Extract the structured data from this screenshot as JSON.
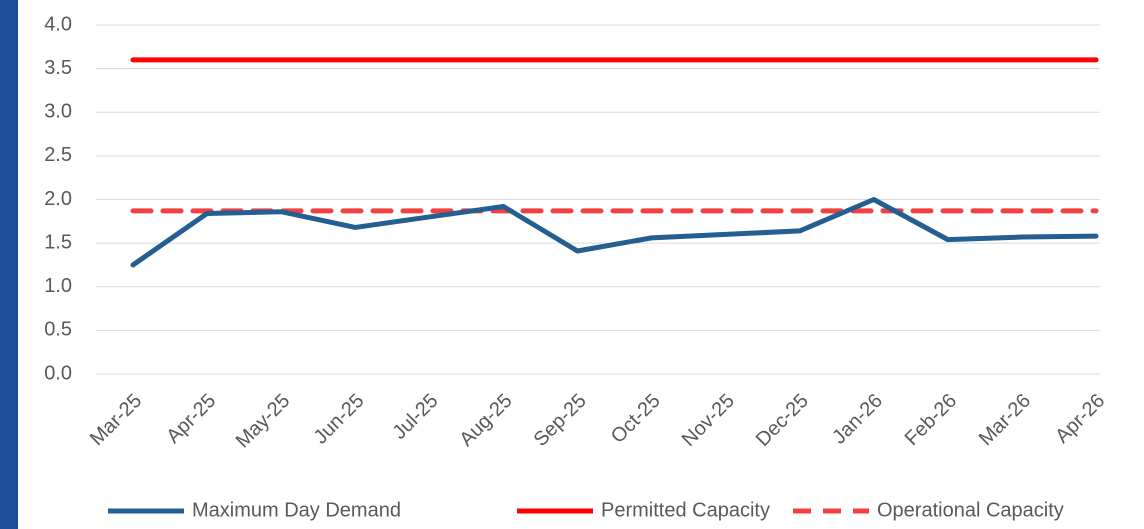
{
  "chart_data": {
    "type": "line",
    "categories": [
      "Mar-25",
      "Apr-25",
      "May-25",
      "Jun-25",
      "Jul-25",
      "Aug-25",
      "Sep-25",
      "Oct-25",
      "Nov-25",
      "Dec-25",
      "Jan-26",
      "Feb-26",
      "Mar-26",
      "Apr-26"
    ],
    "series": [
      {
        "name": "Maximum Day Demand",
        "color": "#255e91",
        "dash": false,
        "values": [
          1.25,
          1.84,
          1.86,
          1.68,
          1.8,
          1.92,
          1.41,
          1.56,
          1.6,
          1.64,
          2.0,
          1.54,
          1.57,
          1.58
        ]
      },
      {
        "name": "Permitted Capacity",
        "color": "#ff0000",
        "dash": false,
        "values": [
          3.6,
          3.6,
          3.6,
          3.6,
          3.6,
          3.6,
          3.6,
          3.6,
          3.6,
          3.6,
          3.6,
          3.6,
          3.6,
          3.6
        ]
      },
      {
        "name": "Operational Capacity",
        "color": "#f04040",
        "dash": true,
        "values": [
          1.87,
          1.87,
          1.87,
          1.87,
          1.87,
          1.87,
          1.87,
          1.87,
          1.87,
          1.87,
          1.87,
          1.87,
          1.87,
          1.87
        ]
      }
    ],
    "ylim": [
      0,
      4
    ],
    "yticks": [
      {
        "value": 0,
        "label": "0.0"
      },
      {
        "value": 0.5,
        "label": "0.5"
      },
      {
        "value": 1,
        "label": "1.0"
      },
      {
        "value": 1.5,
        "label": "1.5"
      },
      {
        "value": 2,
        "label": "2.0"
      },
      {
        "value": 2.5,
        "label": "2.5"
      },
      {
        "value": 3,
        "label": "3.0"
      },
      {
        "value": 3.5,
        "label": "3.5"
      },
      {
        "value": 4,
        "label": "4.0"
      }
    ],
    "grid": true,
    "legend": "bottom"
  }
}
